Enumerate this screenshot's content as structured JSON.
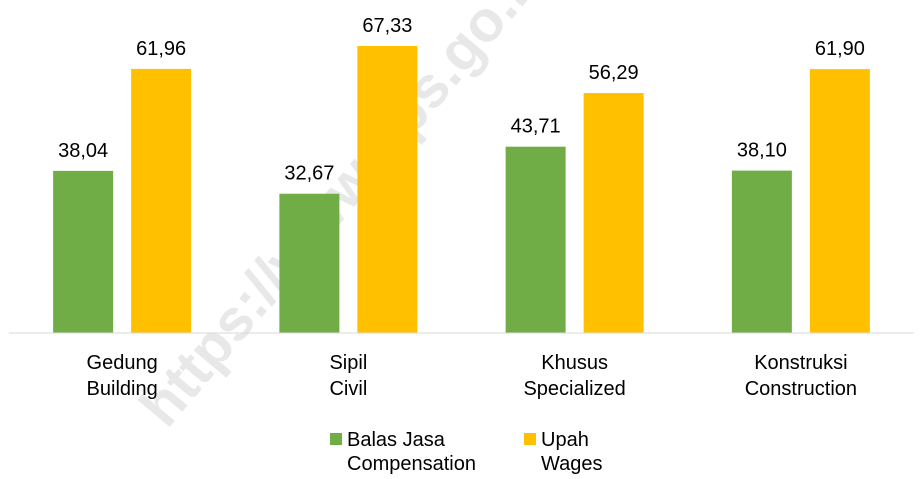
{
  "chart_data": {
    "type": "bar",
    "watermark": "https://www.bps.go.id",
    "categories": [
      [
        "Gedung",
        "Building"
      ],
      [
        "Sipil",
        "Civil"
      ],
      [
        "Khusus",
        "Specialized"
      ],
      [
        "Konstruksi",
        "Construction"
      ]
    ],
    "series": [
      {
        "name": [
          "Balas Jasa",
          "Compensation"
        ],
        "color": "#70ad47",
        "values": [
          38.04,
          32.67,
          43.71,
          38.1
        ],
        "value_labels": [
          "38,04",
          "32,67",
          "43,71",
          "38,10"
        ]
      },
      {
        "name": [
          "Upah",
          "Wages"
        ],
        "color": "#ffc000",
        "values": [
          61.96,
          67.33,
          56.29,
          61.9
        ],
        "value_labels": [
          "61,96",
          "67,33",
          "56,29",
          "61,90"
        ]
      }
    ],
    "legend": "bottom"
  }
}
